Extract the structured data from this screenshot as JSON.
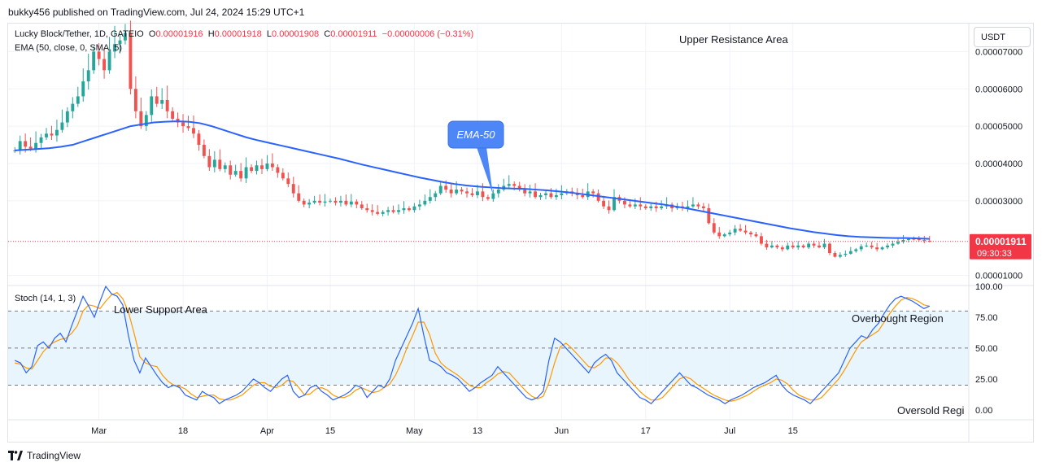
{
  "header": {
    "publisher_line": "bukky456 published on TradingView.com, Jul 24, 2024 15:29 UTC+1"
  },
  "toolbar": {
    "currency": "USDT"
  },
  "legend": {
    "symbol": "Lucky Block/Tether, 1D, GATEIO",
    "o_label": "O",
    "o_value": "0.00001916",
    "h_label": "H",
    "h_value": "0.00001918",
    "l_label": "L",
    "l_value": "0.00001908",
    "c_label": "C",
    "c_value": "0.00001911",
    "change": "−0.00000006 (−0.31%)",
    "ema_label": "EMA (50, close, 0, SMA, 5)",
    "stoch_label": "Stoch (14, 1, 3)"
  },
  "price_badge": {
    "price": "0.00001911",
    "countdown": "09:30:33",
    "color": "#f23645"
  },
  "annotations": {
    "upper_resistance": "Upper Resistance Area",
    "lower_support": "Lower Support Area",
    "ema_callout": "EMA-50",
    "overbought": "Overbought Region",
    "oversold": "Oversold Regi"
  },
  "footer": {
    "brand": "TradingView"
  },
  "colors": {
    "up": "#26a69a",
    "down": "#ef5350",
    "ema": "#2962ff",
    "stoch_k": "#2962ff",
    "stoch_d": "#ff9800",
    "band_fill": "#e3f2fd",
    "callout": "#4d86f7"
  },
  "chart_data": [
    {
      "type": "candlestick",
      "title": "Lucky Block/Tether, 1D, GATEIO",
      "y_ticks": [
        "0.00007000",
        "0.00006000",
        "0.00005000",
        "0.00004000",
        "0.00003000",
        "0.00001000"
      ],
      "ylim": [
        7.5e-06,
        7.75e-05
      ],
      "x_ticks": [
        "Mar",
        "18",
        "Apr",
        "15",
        "May",
        "13",
        "Jun",
        "17",
        "Jul",
        "15"
      ],
      "last_close": 1.911e-05,
      "series": [
        {
          "name": "Price (approx. daily closes, Feb 13 – Jul 24, 2024)",
          "values": [
            4.35e-05,
            4.6e-05,
            4.45e-05,
            4.4e-05,
            4.55e-05,
            4.7e-05,
            4.8e-05,
            4.75e-05,
            4.9e-05,
            5.1e-05,
            5.4e-05,
            5.6e-05,
            5.8e-05,
            6.2e-05,
            6.5e-05,
            7e-05,
            6.8e-05,
            6.5e-05,
            7e-05,
            7.2e-05,
            7.3e-05,
            7.5e-05,
            6e-05,
            5.4e-05,
            5e-05,
            5.3e-05,
            5.8e-05,
            5.6e-05,
            5.7e-05,
            5.4e-05,
            5.2e-05,
            5.1e-05,
            5e-05,
            4.95e-05,
            4.8e-05,
            4.5e-05,
            4.2e-05,
            3.9e-05,
            4.1e-05,
            3.85e-05,
            3.95e-05,
            3.7e-05,
            3.8e-05,
            3.6e-05,
            3.9e-05,
            3.8e-05,
            3.95e-05,
            3.85e-05,
            4e-05,
            3.9e-05,
            3.75e-05,
            3.6e-05,
            3.45e-05,
            3.2e-05,
            3e-05,
            2.9e-05,
            2.95e-05,
            3e-05,
            2.95e-05,
            2.98e-05,
            3e-05,
            2.95e-05,
            3e-05,
            2.9e-05,
            2.98e-05,
            2.9e-05,
            2.8e-05,
            2.75e-05,
            2.7e-05,
            2.65e-05,
            2.7e-05,
            2.75e-05,
            2.7e-05,
            2.75e-05,
            2.8e-05,
            2.75e-05,
            2.85e-05,
            2.9e-05,
            3e-05,
            3.1e-05,
            3.2e-05,
            3.4e-05,
            3.3e-05,
            3.2e-05,
            3.3e-05,
            3.25e-05,
            3.2e-05,
            3.15e-05,
            3.25e-05,
            3.1e-05,
            3.05e-05,
            3.2e-05,
            3.3e-05,
            3.4e-05,
            3.45e-05,
            3.4e-05,
            3.3e-05,
            3.2e-05,
            3.25e-05,
            3.1e-05,
            3.15e-05,
            3.2e-05,
            3.1e-05,
            3.15e-05,
            3.2e-05,
            3.25e-05,
            3.2e-05,
            3.15e-05,
            3.1e-05,
            3.25e-05,
            3.2e-05,
            3e-05,
            2.85e-05,
            2.75e-05,
            3.1e-05,
            3e-05,
            2.9e-05,
            2.85e-05,
            2.9e-05,
            2.85e-05,
            2.8e-05,
            2.85e-05,
            2.8e-05,
            2.85e-05,
            2.9e-05,
            2.8e-05,
            2.85e-05,
            2.8e-05,
            2.85e-05,
            2.9e-05,
            2.85e-05,
            2.8e-05,
            2.4e-05,
            2.15e-05,
            2.05e-05,
            2.1e-05,
            2.15e-05,
            2.25e-05,
            2.2e-05,
            2.15e-05,
            2.1e-05,
            2.05e-05,
            1.85e-05,
            1.75e-05,
            1.8e-05,
            1.75e-05,
            1.7e-05,
            1.8e-05,
            1.75e-05,
            1.8e-05,
            1.75e-05,
            1.85e-05,
            1.8e-05,
            1.75e-05,
            1.85e-05,
            1.6e-05,
            1.5e-05,
            1.55e-05,
            1.58e-05,
            1.65e-05,
            1.7e-05,
            1.78e-05,
            1.8e-05,
            1.75e-05,
            1.7e-05,
            1.75e-05,
            1.8e-05,
            1.85e-05,
            1.9e-05,
            1.95e-05,
            1.98e-05,
            1.97e-05,
            1.95e-05,
            1.93e-05,
            1.91e-05
          ]
        },
        {
          "name": "EMA (50, close, 0, SMA, 5)",
          "values": [
            4.35e-05,
            4.37e-05,
            4.39e-05,
            4.41e-05,
            4.45e-05,
            4.5e-05,
            4.6e-05,
            4.7e-05,
            4.8e-05,
            4.9e-05,
            5e-05,
            5.05e-05,
            5.1e-05,
            5.12e-05,
            5.13e-05,
            5.12e-05,
            5.08e-05,
            5e-05,
            4.9e-05,
            4.8e-05,
            4.7e-05,
            4.62e-05,
            4.55e-05,
            4.48e-05,
            4.41e-05,
            4.34e-05,
            4.27e-05,
            4.2e-05,
            4.13e-05,
            4.05e-05,
            3.97e-05,
            3.9e-05,
            3.83e-05,
            3.76e-05,
            3.69e-05,
            3.62e-05,
            3.56e-05,
            3.5e-05,
            3.45e-05,
            3.41e-05,
            3.38e-05,
            3.36e-05,
            3.34e-05,
            3.33e-05,
            3.32e-05,
            3.3e-05,
            3.28e-05,
            3.25e-05,
            3.22e-05,
            3.18e-05,
            3.14e-05,
            3.1e-05,
            3.06e-05,
            3.02e-05,
            2.98e-05,
            2.94e-05,
            2.9e-05,
            2.85e-05,
            2.8e-05,
            2.74e-05,
            2.68e-05,
            2.62e-05,
            2.56e-05,
            2.5e-05,
            2.44e-05,
            2.38e-05,
            2.32e-05,
            2.26e-05,
            2.21e-05,
            2.16e-05,
            2.12e-05,
            2.08e-05,
            2.05e-05,
            2.03e-05,
            2.02e-05,
            2.01e-05,
            2e-05,
            2e-05,
            1.99e-05,
            1.98e-05
          ]
        }
      ]
    },
    {
      "type": "line",
      "title": "Stoch (14, 1, 3)",
      "y_ticks": [
        "100.00",
        "75.00",
        "50.00",
        "25.00",
        "0.00"
      ],
      "ylim": [
        -8,
        100
      ],
      "band": [
        20,
        80
      ],
      "series": [
        {
          "name": "%K",
          "values": [
            40,
            38,
            30,
            35,
            52,
            55,
            50,
            58,
            62,
            55,
            68,
            80,
            92,
            84,
            75,
            88,
            100,
            94,
            92,
            85,
            60,
            40,
            30,
            42,
            35,
            28,
            22,
            18,
            20,
            18,
            12,
            10,
            8,
            15,
            12,
            10,
            5,
            8,
            10,
            12,
            15,
            20,
            25,
            22,
            18,
            15,
            20,
            25,
            28,
            15,
            10,
            12,
            18,
            20,
            15,
            12,
            8,
            10,
            12,
            15,
            20,
            18,
            10,
            15,
            20,
            18,
            25,
            40,
            50,
            60,
            70,
            82,
            60,
            40,
            38,
            35,
            30,
            28,
            25,
            20,
            15,
            18,
            22,
            25,
            28,
            35,
            30,
            25,
            20,
            15,
            10,
            8,
            10,
            15,
            40,
            58,
            55,
            50,
            45,
            40,
            35,
            30,
            38,
            42,
            45,
            40,
            30,
            25,
            20,
            15,
            10,
            8,
            5,
            10,
            15,
            20,
            25,
            30,
            25,
            20,
            18,
            15,
            12,
            10,
            8,
            5,
            8,
            10,
            12,
            15,
            18,
            20,
            22,
            25,
            28,
            20,
            15,
            12,
            10,
            8,
            5,
            10,
            15,
            20,
            25,
            30,
            40,
            50,
            55,
            60,
            58,
            65,
            70,
            78,
            85,
            90,
            92,
            90,
            88,
            85,
            82,
            84
          ]
        },
        {
          "name": "%D",
          "values": [
            38,
            37,
            34,
            33,
            40,
            47,
            52,
            55,
            57,
            58,
            62,
            68,
            80,
            85,
            84,
            82,
            88,
            93,
            95,
            90,
            79,
            62,
            43,
            38,
            36,
            35,
            28,
            23,
            20,
            19,
            17,
            13,
            10,
            11,
            12,
            12,
            9,
            8,
            8,
            10,
            12,
            16,
            20,
            22,
            22,
            19,
            18,
            20,
            24,
            23,
            18,
            12,
            13,
            17,
            18,
            16,
            12,
            10,
            10,
            12,
            16,
            18,
            16,
            14,
            15,
            18,
            21,
            28,
            38,
            50,
            60,
            71,
            71,
            61,
            46,
            38,
            34,
            31,
            28,
            24,
            20,
            18,
            18,
            22,
            25,
            29,
            31,
            30,
            25,
            20,
            15,
            11,
            9,
            11,
            22,
            38,
            51,
            54,
            50,
            45,
            40,
            35,
            34,
            37,
            42,
            42,
            38,
            32,
            25,
            20,
            15,
            11,
            8,
            8,
            10,
            15,
            20,
            25,
            27,
            25,
            21,
            18,
            15,
            12,
            10,
            8,
            7,
            8,
            10,
            12,
            15,
            18,
            20,
            22,
            25,
            24,
            21,
            16,
            12,
            10,
            8,
            8,
            10,
            15,
            20,
            25,
            32,
            40,
            48,
            55,
            58,
            61,
            64,
            71,
            78,
            84,
            89,
            91,
            90,
            88,
            85,
            84
          ]
        }
      ]
    }
  ]
}
